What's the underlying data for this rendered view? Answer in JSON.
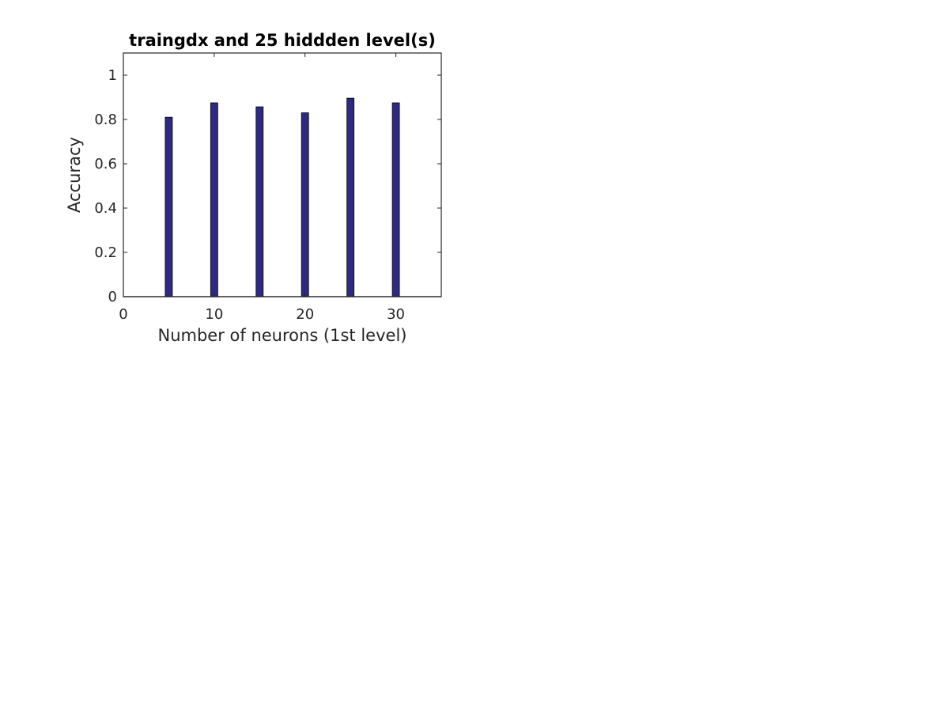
{
  "chart_data": {
    "type": "bar",
    "title": "traingdx and 25 hiddden level(s)",
    "xlabel": "Number of neurons (1st level)",
    "ylabel": "Accuracy",
    "x": [
      5,
      10,
      15,
      20,
      25,
      30
    ],
    "values": [
      0.81,
      0.875,
      0.857,
      0.83,
      0.896,
      0.875
    ],
    "xlim": [
      0,
      35
    ],
    "ylim": [
      0,
      1.1
    ],
    "xticks": [
      0,
      10,
      20,
      30
    ],
    "yticks": [
      0,
      0.2,
      0.4,
      0.6,
      0.8,
      1
    ],
    "xtick_labels": [
      "0",
      "10",
      "20",
      "30"
    ],
    "ytick_labels": [
      "0",
      "0.2",
      "0.4",
      "0.6",
      "0.8",
      "1"
    ],
    "bar_color": "#2e2a7f",
    "grid": false
  }
}
